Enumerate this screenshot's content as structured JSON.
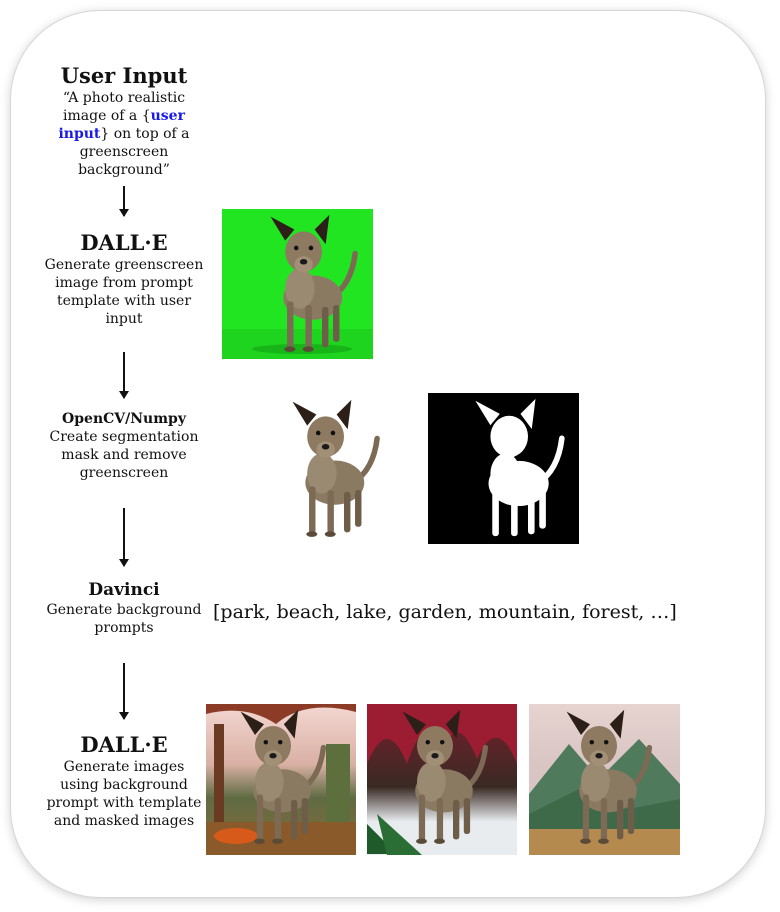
{
  "steps": [
    {
      "title": "User Input",
      "desc_pre": "“A photo realistic image of a {",
      "desc_highlight": "user input",
      "desc_post": "} on top of a greenscreen background”"
    },
    {
      "title": "DALL·E",
      "desc": "Generate greenscreen image from prompt template with user input"
    },
    {
      "title": "OpenCV/Numpy",
      "desc": "Create segmentation mask and remove greenscreen"
    },
    {
      "title": "Davinci",
      "desc": "Generate background prompts"
    },
    {
      "title": "DALL·E",
      "desc": "Generate images using background prompt with template and masked images"
    }
  ],
  "background_prompts": "[park, beach, lake, garden, mountain, forest, …]",
  "images": [
    {
      "name": "greenscreen dog"
    },
    {
      "name": "dog with greenscreen removed"
    },
    {
      "name": "segmentation mask"
    },
    {
      "name": "dog in autumn park"
    },
    {
      "name": "dog among red plants"
    },
    {
      "name": "dog on mountain"
    }
  ],
  "colors": {
    "greenscreen": "#22e522",
    "mask_bg": "#000000",
    "highlight": "#1a1ae6"
  }
}
